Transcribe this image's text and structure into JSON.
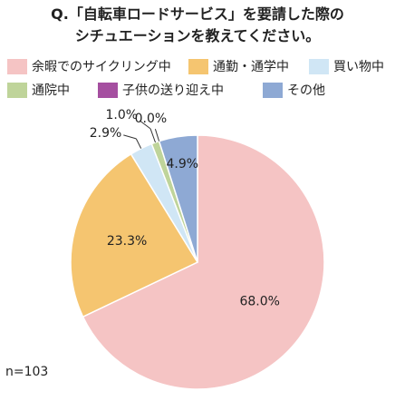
{
  "chart_data": {
    "type": "pie",
    "title_lines": [
      "Q.「自転車ロードサービス」を要請した際の",
      "シチュエーションを教えてください。"
    ],
    "slices": [
      {
        "name": "余暇でのサイクリング中",
        "value": 68.0,
        "label": "68.0%",
        "color": "#F5C4C4"
      },
      {
        "name": "通勤・通学中",
        "value": 23.3,
        "label": "23.3%",
        "color": "#F5C570"
      },
      {
        "name": "買い物中",
        "value": 2.9,
        "label": "2.9%",
        "color": "#D0E6F5"
      },
      {
        "name": "通院中",
        "value": 1.0,
        "label": "1.0%",
        "color": "#BFD49A"
      },
      {
        "name": "子供の送り迎え中",
        "value": 0.0,
        "label": "0.0%",
        "color": "#A54FA0"
      },
      {
        "name": "その他",
        "value": 4.9,
        "label": "4.9%",
        "color": "#8EA9D4"
      }
    ],
    "legend_position": "top",
    "start_angle": "12 o'clock",
    "direction": "clockwise",
    "note": "n=103"
  }
}
